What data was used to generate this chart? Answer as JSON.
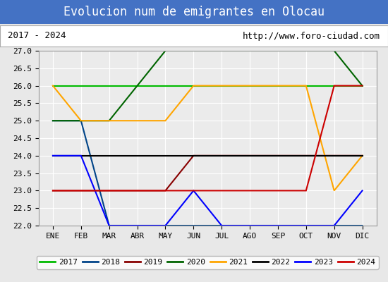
{
  "title": "Evolucion num de emigrantes en Olocau",
  "subtitle_left": "2017 - 2024",
  "subtitle_right": "http://www.foro-ciudad.com",
  "months": [
    "ENE",
    "FEB",
    "MAR",
    "ABR",
    "MAY",
    "JUN",
    "JUL",
    "AGO",
    "SEP",
    "OCT",
    "NOV",
    "DIC"
  ],
  "month_indices": [
    1,
    2,
    3,
    4,
    5,
    6,
    7,
    8,
    9,
    10,
    11,
    12
  ],
  "ylim": [
    22.0,
    27.0
  ],
  "yticks": [
    22.0,
    22.5,
    23.0,
    23.5,
    24.0,
    24.5,
    25.0,
    25.5,
    26.0,
    26.5,
    27.0
  ],
  "series": {
    "2017": {
      "color": "#00bb00",
      "values": [
        26,
        26,
        26,
        26,
        26,
        26,
        26,
        26,
        26,
        26,
        26,
        26
      ],
      "x": [
        1,
        2,
        3,
        4,
        5,
        6,
        7,
        8,
        9,
        10,
        11,
        12
      ]
    },
    "2018": {
      "color": "#004488",
      "values": [
        25,
        25,
        22,
        22,
        22,
        22,
        22,
        22,
        22,
        22,
        22,
        22
      ],
      "x": [
        1,
        2,
        3,
        4,
        5,
        6,
        7,
        8,
        9,
        10,
        11,
        12
      ]
    },
    "2019": {
      "color": "#880000",
      "values": [
        23,
        23,
        23,
        23,
        23,
        24,
        24,
        24,
        24,
        24,
        24,
        24
      ],
      "x": [
        1,
        2,
        3,
        4,
        5,
        6,
        7,
        8,
        9,
        10,
        11,
        12
      ]
    },
    "2020": {
      "color": "#006400",
      "values": [
        25,
        25,
        25,
        26,
        27,
        27,
        27,
        27,
        27,
        27,
        27,
        26
      ],
      "x": [
        1,
        2,
        3,
        4,
        5,
        6,
        7,
        8,
        9,
        10,
        11,
        12
      ]
    },
    "2021": {
      "color": "#ffa500",
      "values": [
        26,
        25,
        25,
        25,
        25,
        26,
        26,
        26,
        26,
        26,
        23,
        24
      ],
      "x": [
        1,
        2,
        3,
        4,
        5,
        6,
        7,
        8,
        9,
        10,
        11,
        12
      ]
    },
    "2022": {
      "color": "#000000",
      "values": [
        24,
        24,
        24,
        24,
        24,
        24,
        24,
        24,
        24,
        24,
        24,
        24
      ],
      "x": [
        1,
        2,
        3,
        4,
        5,
        6,
        7,
        8,
        9,
        10,
        11,
        12
      ]
    },
    "2023": {
      "color": "#0000ff",
      "values": [
        24,
        24,
        22,
        22,
        22,
        23,
        22,
        22,
        22,
        22,
        22,
        23
      ],
      "x": [
        1,
        2,
        3,
        4,
        5,
        6,
        7,
        8,
        9,
        10,
        11,
        12
      ]
    },
    "2024": {
      "color": "#cc0000",
      "values": [
        23,
        23,
        23,
        23,
        23,
        23,
        23,
        23,
        23,
        23,
        26,
        26
      ],
      "x": [
        1,
        2,
        3,
        4,
        5,
        6,
        7,
        8,
        9,
        10,
        11,
        12
      ]
    }
  },
  "background_color": "#e8e8e8",
  "plot_bg_color": "#ebebeb",
  "title_bg_color": "#4472c4",
  "title_color": "#ffffff",
  "grid_color": "#ffffff",
  "subtitle_box_color": "#ffffff",
  "subtitle_edge_color": "#aaaaaa"
}
